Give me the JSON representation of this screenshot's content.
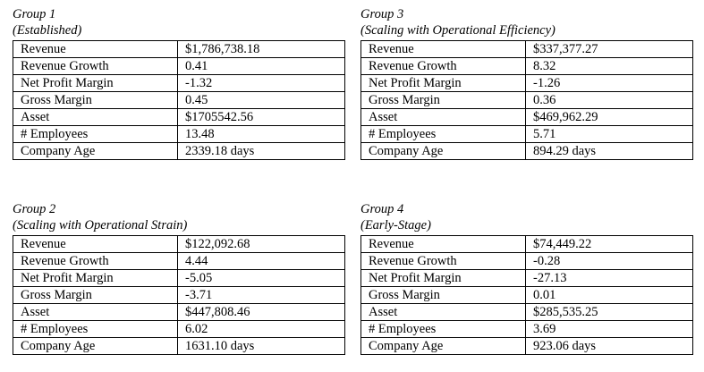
{
  "groups": [
    {
      "title": "Group 1",
      "subtitle": "(Established)",
      "rows": [
        {
          "label": "Revenue",
          "value": "$1,786,738.18"
        },
        {
          "label": "Revenue Growth",
          "value": "0.41"
        },
        {
          "label": "Net Profit Margin",
          "value": "-1.32"
        },
        {
          "label": "Gross Margin",
          "value": "0.45"
        },
        {
          "label": "Asset",
          "value": "$1705542.56"
        },
        {
          "label": "# Employees",
          "value": "13.48"
        },
        {
          "label": "Company Age",
          "value": "2339.18 days"
        }
      ]
    },
    {
      "title": "Group 2",
      "subtitle": "(Scaling with Operational Strain)",
      "rows": [
        {
          "label": "Revenue",
          "value": "$122,092.68"
        },
        {
          "label": "Revenue Growth",
          "value": "4.44"
        },
        {
          "label": "Net Profit Margin",
          "value": "-5.05"
        },
        {
          "label": "Gross Margin",
          "value": "-3.71"
        },
        {
          "label": "Asset",
          "value": "$447,808.46"
        },
        {
          "label": "# Employees",
          "value": "6.02"
        },
        {
          "label": "Company Age",
          "value": "1631.10 days"
        }
      ]
    },
    {
      "title": "Group 3",
      "subtitle": "(Scaling with Operational Efficiency)",
      "rows": [
        {
          "label": "Revenue",
          "value": "$337,377.27"
        },
        {
          "label": "Revenue Growth",
          "value": "8.32"
        },
        {
          "label": "Net Profit Margin",
          "value": "-1.26"
        },
        {
          "label": "Gross Margin",
          "value": "0.36"
        },
        {
          "label": "Asset",
          "value": "$469,962.29"
        },
        {
          "label": "# Employees",
          "value": "5.71"
        },
        {
          "label": "Company Age",
          "value": "894.29 days"
        }
      ]
    },
    {
      "title": "Group 4",
      "subtitle": "(Early-Stage)",
      "rows": [
        {
          "label": "Revenue",
          "value": "$74,449.22"
        },
        {
          "label": "Revenue Growth",
          "value": "-0.28"
        },
        {
          "label": "Net Profit Margin",
          "value": "-27.13"
        },
        {
          "label": "Gross Margin",
          "value": "0.01"
        },
        {
          "label": "Asset",
          "value": "$285,535.25"
        },
        {
          "label": "# Employees",
          "value": "3.69"
        },
        {
          "label": "Company Age",
          "value": "923.06 days"
        }
      ]
    }
  ]
}
